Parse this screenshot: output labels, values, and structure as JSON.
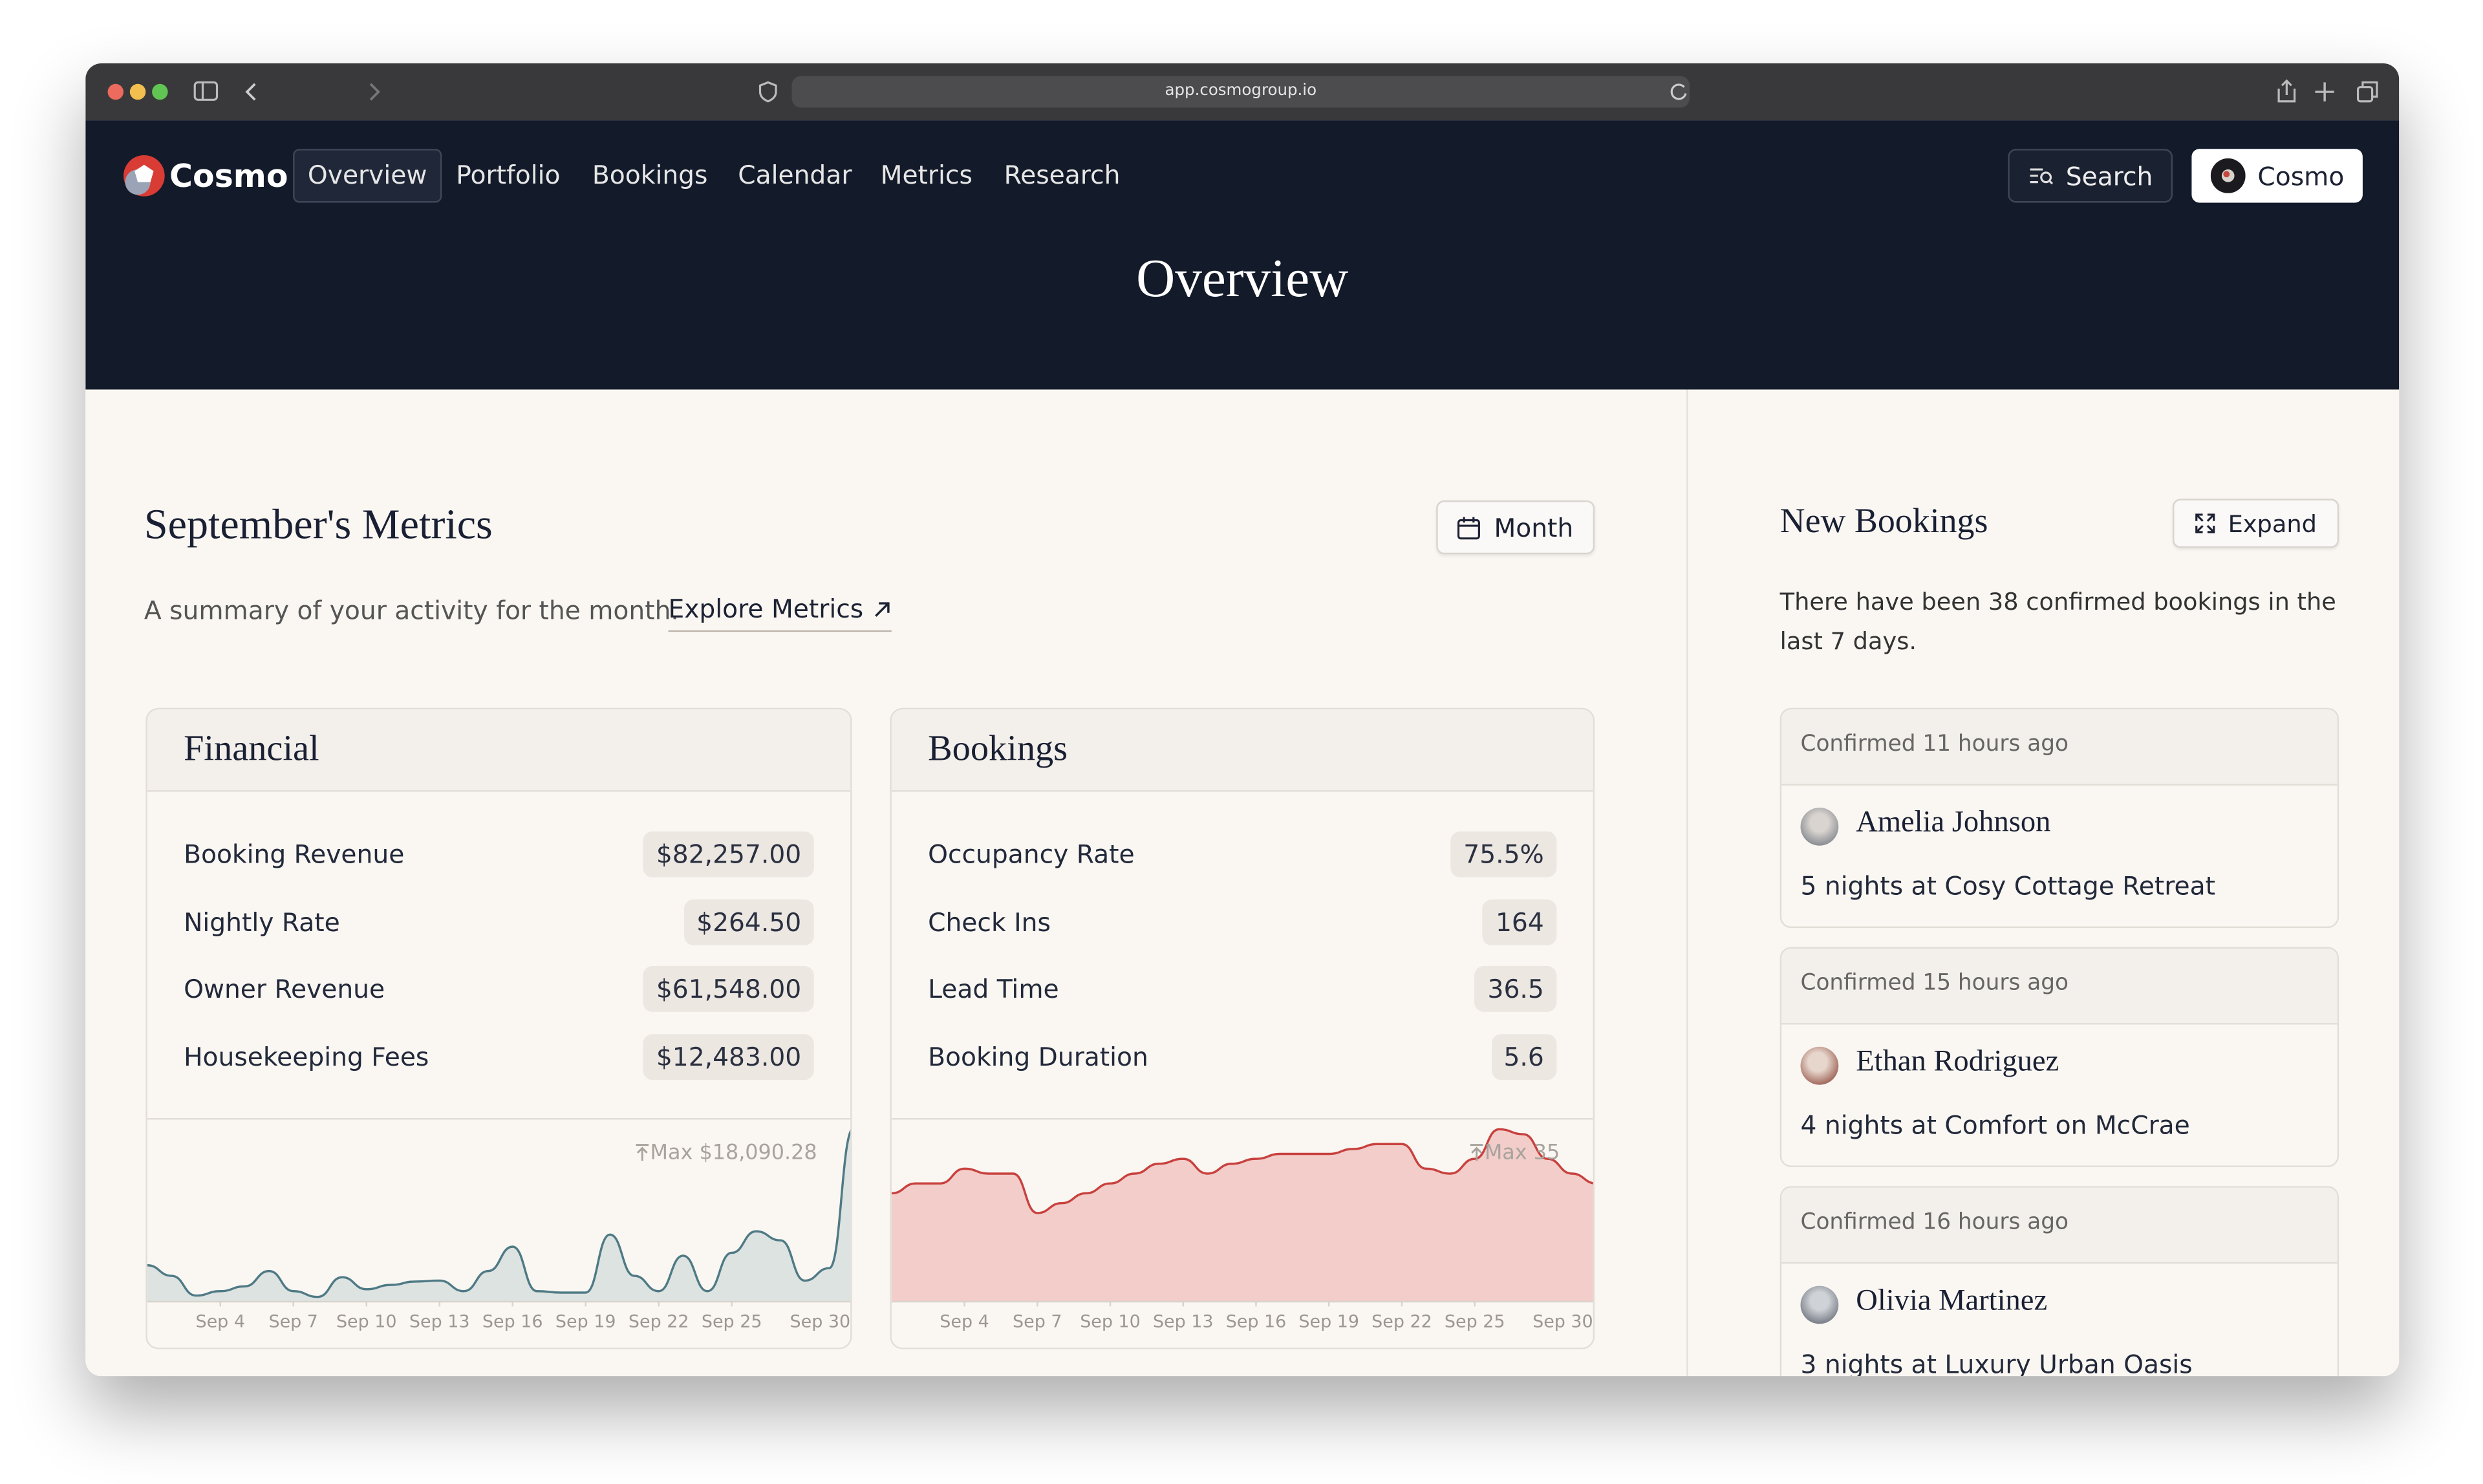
{
  "browser": {
    "url": "app.cosmogroup.io"
  },
  "nav": {
    "brand": "Cosmo",
    "links": [
      "Overview",
      "Portfolio",
      "Bookings",
      "Calendar",
      "Metrics",
      "Research"
    ],
    "search": "Search",
    "account": "Cosmo"
  },
  "header": {
    "title": "Overview"
  },
  "metrics": {
    "title": "September's Metrics",
    "period": "Month",
    "summary": "A summary of your activity for the month.",
    "explore": "Explore Metrics",
    "cards": [
      {
        "title": "Financial",
        "rows": [
          {
            "label": "Booking Revenue",
            "value": "$82,257.00"
          },
          {
            "label": "Nightly Rate",
            "value": "$264.50"
          },
          {
            "label": "Owner Revenue",
            "value": "$61,548.00"
          },
          {
            "label": "Housekeeping Fees",
            "value": "$12,483.00"
          }
        ],
        "chart": {
          "type": "area",
          "max_label": "Max $18,090.28",
          "color": "#4f7a85",
          "fill": "#dde3e1",
          "x": [
            1,
            2,
            3,
            4,
            5,
            6,
            7,
            8,
            9,
            10,
            11,
            12,
            13,
            14,
            15,
            16,
            17,
            18,
            19,
            20,
            21,
            22,
            23,
            24,
            25,
            26,
            27,
            28,
            29,
            30
          ],
          "values": [
            3800,
            2700,
            640,
            1100,
            1600,
            3200,
            1100,
            500,
            2550,
            1300,
            1750,
            2100,
            2200,
            1100,
            3200,
            5740,
            1100,
            950,
            950,
            7000,
            2700,
            1100,
            4800,
            1100,
            5100,
            7340,
            6400,
            2200,
            3500,
            18090.28
          ],
          "xlim": [
            1,
            30
          ],
          "ylim": [
            0,
            18500
          ],
          "xticks": [
            {
              "value": 4,
              "label": "Sep 4"
            },
            {
              "value": 7,
              "label": "Sep 7"
            },
            {
              "value": 10,
              "label": "Sep 10"
            },
            {
              "value": 13,
              "label": "Sep 13"
            },
            {
              "value": 16,
              "label": "Sep 16"
            },
            {
              "value": 19,
              "label": "Sep 19"
            },
            {
              "value": 22,
              "label": "Sep 22"
            },
            {
              "value": 25,
              "label": "Sep 25"
            },
            {
              "value": 30,
              "label": "Sep 30"
            }
          ]
        }
      },
      {
        "title": "Bookings",
        "rows": [
          {
            "label": "Occupancy Rate",
            "value": "75.5%"
          },
          {
            "label": "Check Ins",
            "value": "164"
          },
          {
            "label": "Lead Time",
            "value": "36.5"
          },
          {
            "label": "Booking Duration",
            "value": "5.6"
          }
        ],
        "chart": {
          "type": "area",
          "max_label": "Max 35",
          "color": "#c8413e",
          "fill": "#f2cdca",
          "x": [
            1,
            2,
            3,
            4,
            5,
            6,
            7,
            8,
            9,
            10,
            11,
            12,
            13,
            14,
            15,
            16,
            17,
            18,
            19,
            20,
            21,
            22,
            23,
            24,
            25,
            26,
            27,
            28,
            29,
            30
          ],
          "values": [
            22,
            24,
            24,
            27,
            26,
            26,
            18,
            20,
            22,
            24,
            26,
            28,
            29,
            26,
            28,
            29,
            30,
            30,
            30,
            31,
            32,
            32,
            27,
            26,
            29,
            35,
            34,
            29,
            26,
            24
          ],
          "xlim": [
            1,
            30
          ],
          "ylim": [
            0,
            36
          ],
          "xticks": [
            {
              "value": 4,
              "label": "Sep 4"
            },
            {
              "value": 7,
              "label": "Sep 7"
            },
            {
              "value": 10,
              "label": "Sep 10"
            },
            {
              "value": 13,
              "label": "Sep 13"
            },
            {
              "value": 16,
              "label": "Sep 16"
            },
            {
              "value": 19,
              "label": "Sep 19"
            },
            {
              "value": 22,
              "label": "Sep 22"
            },
            {
              "value": 25,
              "label": "Sep 25"
            },
            {
              "value": 30,
              "label": "Sep 30"
            }
          ]
        }
      }
    ]
  },
  "bookings": {
    "title": "New Bookings",
    "expand": "Expand",
    "summary": "There have been 38 confirmed bookings in the last 7 days.",
    "items": [
      {
        "status": "Confirmed 11 hours ago",
        "guest": "Amelia Johnson",
        "stay": "5 nights at Cosy Cottage Retreat"
      },
      {
        "status": "Confirmed 15 hours ago",
        "guest": "Ethan Rodriguez",
        "stay": "4 nights at Comfort on McCrae"
      },
      {
        "status": "Confirmed 16 hours ago",
        "guest": "Olivia Martinez",
        "stay": "3 nights at Luxury Urban Oasis"
      }
    ]
  }
}
